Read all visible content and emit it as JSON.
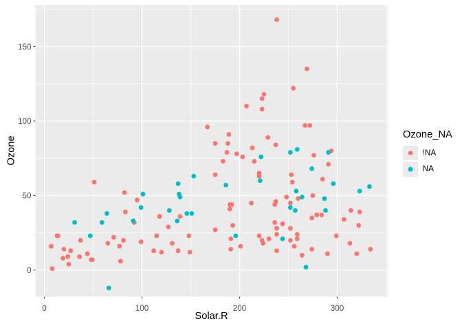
{
  "figure": {
    "background": "#FFFFFF",
    "panel_background": "#EBEBEB",
    "gridline_color": "#FFFFFF",
    "tick_mark_color": "#333333",
    "tick_label_color": "#4D4D4D",
    "axis_title_color": "#000000"
  },
  "chart_data": {
    "type": "scatter",
    "title": "",
    "xlabel": "Solar.R",
    "ylabel": "Ozone",
    "x_ticks": [
      0,
      100,
      200,
      300
    ],
    "y_ticks": [
      0,
      50,
      100,
      150
    ],
    "x_minor_gridlines": [
      50,
      150,
      250,
      350
    ],
    "y_minor_gridlines": [
      25,
      75,
      125,
      175
    ],
    "xlim": [
      -9.2,
      351.4
    ],
    "ylim": [
      -17.8,
      177.7
    ],
    "grid": "on",
    "point_radius": 3.4,
    "legend": {
      "title": "Ozone_NA",
      "position": "right",
      "entries": [
        {
          "label": "!NA",
          "color": "#F8766D"
        },
        {
          "label": "NA",
          "color": "#00BFC4"
        }
      ]
    },
    "series": [
      {
        "name": "!NA",
        "color": "#F8766D",
        "points": [
          [
            190,
            41
          ],
          [
            118,
            36
          ],
          [
            149,
            12
          ],
          [
            313,
            18
          ],
          [
            299,
            23
          ],
          [
            99,
            19
          ],
          [
            19,
            8
          ],
          [
            256,
            16
          ],
          [
            290,
            11
          ],
          [
            274,
            14
          ],
          [
            65,
            18
          ],
          [
            334,
            14
          ],
          [
            307,
            34
          ],
          [
            78,
            6
          ],
          [
            322,
            30
          ],
          [
            44,
            11
          ],
          [
            8,
            1
          ],
          [
            320,
            11
          ],
          [
            25,
            4
          ],
          [
            92,
            32
          ],
          [
            13,
            23
          ],
          [
            252,
            45
          ],
          [
            223,
            115
          ],
          [
            279,
            37
          ],
          [
            127,
            29
          ],
          [
            291,
            71
          ],
          [
            323,
            39
          ],
          [
            148,
            23
          ],
          [
            191,
            21
          ],
          [
            284,
            37
          ],
          [
            37,
            20
          ],
          [
            120,
            12
          ],
          [
            137,
            13
          ],
          [
            269,
            135
          ],
          [
            248,
            49
          ],
          [
            236,
            32
          ],
          [
            175,
            64
          ],
          [
            314,
            40
          ],
          [
            276,
            77
          ],
          [
            267,
            97
          ],
          [
            272,
            97
          ],
          [
            175,
            85
          ],
          [
            264,
            10
          ],
          [
            175,
            27
          ],
          [
            48,
            7
          ],
          [
            260,
            48
          ],
          [
            274,
            35
          ],
          [
            285,
            61
          ],
          [
            187,
            79
          ],
          [
            220,
            63
          ],
          [
            7,
            16
          ],
          [
            294,
            80
          ],
          [
            223,
            108
          ],
          [
            81,
            20
          ],
          [
            82,
            52
          ],
          [
            213,
            82
          ],
          [
            275,
            50
          ],
          [
            253,
            64
          ],
          [
            254,
            59
          ],
          [
            83,
            39
          ],
          [
            24,
            9
          ],
          [
            77,
            16
          ],
          [
            255,
            122
          ],
          [
            229,
            89
          ],
          [
            207,
            110
          ],
          [
            192,
            44
          ],
          [
            252,
            28
          ],
          [
            220,
            65
          ],
          [
            71,
            22
          ],
          [
            51,
            59
          ],
          [
            115,
            23
          ],
          [
            244,
            31
          ],
          [
            190,
            44
          ],
          [
            259,
            21
          ],
          [
            36,
            9
          ],
          [
            212,
            45
          ],
          [
            238,
            168
          ],
          [
            215,
            73
          ],
          [
            203,
            76
          ],
          [
            225,
            118
          ],
          [
            237,
            84
          ],
          [
            188,
            85
          ],
          [
            167,
            96
          ],
          [
            197,
            78
          ],
          [
            183,
            73
          ],
          [
            189,
            91
          ],
          [
            95,
            47
          ],
          [
            92,
            32
          ],
          [
            252,
            20
          ],
          [
            220,
            23
          ],
          [
            230,
            21
          ],
          [
            259,
            24
          ],
          [
            236,
            44
          ],
          [
            259,
            21
          ],
          [
            238,
            28
          ],
          [
            24,
            9
          ],
          [
            112,
            13
          ],
          [
            237,
            46
          ],
          [
            224,
            18
          ],
          [
            27,
            13
          ],
          [
            238,
            24
          ],
          [
            201,
            16
          ],
          [
            238,
            13
          ],
          [
            14,
            23
          ],
          [
            139,
            36
          ],
          [
            49,
            7
          ],
          [
            20,
            14
          ],
          [
            193,
            30
          ],
          [
            191,
            14
          ],
          [
            131,
            18
          ],
          [
            223,
            20
          ]
        ]
      },
      {
        "name": "NA",
        "color": "#00BFC4",
        "points": [
          [
            31,
            32
          ],
          [
            47,
            23
          ],
          [
            59,
            32
          ],
          [
            64,
            38
          ],
          [
            66,
            -12
          ],
          [
            91,
            33
          ],
          [
            99,
            42
          ],
          [
            101,
            51
          ],
          [
            128,
            40
          ],
          [
            136,
            33
          ],
          [
            137,
            58
          ],
          [
            138,
            51
          ],
          [
            139,
            49
          ],
          [
            146,
            38
          ],
          [
            151,
            38
          ],
          [
            153,
            63
          ],
          [
            186,
            57
          ],
          [
            196,
            23
          ],
          [
            221,
            60
          ],
          [
            222,
            76
          ],
          [
            244,
            21
          ],
          [
            252,
            42
          ],
          [
            252,
            79
          ],
          [
            257,
            40
          ],
          [
            258,
            53
          ],
          [
            259,
            81
          ],
          [
            264,
            49
          ],
          [
            268,
            2
          ],
          [
            274,
            68
          ],
          [
            287,
            48
          ],
          [
            288,
            40
          ],
          [
            291,
            79
          ],
          [
            296,
            58
          ],
          [
            323,
            53
          ],
          [
            333,
            56
          ]
        ]
      }
    ]
  }
}
